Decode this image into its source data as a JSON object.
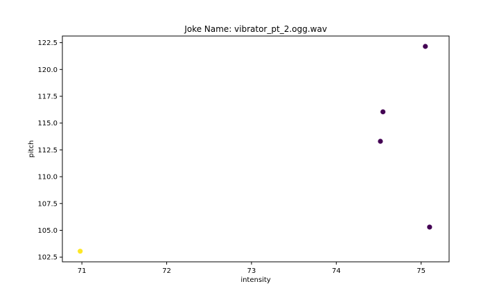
{
  "chart_data": {
    "type": "scatter",
    "title": "Joke Name: vibrator_pt_2.ogg.wav",
    "xlabel": "intensity",
    "ylabel": "pitch",
    "xlim": [
      70.77,
      75.33
    ],
    "ylim": [
      102.06,
      123.12
    ],
    "xticks": [
      71,
      72,
      73,
      74,
      75
    ],
    "xtick_labels": [
      "71",
      "72",
      "73",
      "74",
      "75"
    ],
    "yticks": [
      102.5,
      105.0,
      107.5,
      110.0,
      112.5,
      115.0,
      117.5,
      120.0,
      122.5
    ],
    "ytick_labels": [
      "102.5",
      "105.0",
      "107.5",
      "110.0",
      "112.5",
      "115.0",
      "117.5",
      "120.0",
      "122.5"
    ],
    "grid": false,
    "points": [
      {
        "x": 70.98,
        "y": 103.05,
        "color": "#fde725"
      },
      {
        "x": 74.52,
        "y": 113.3,
        "color": "#440154"
      },
      {
        "x": 74.55,
        "y": 116.05,
        "color": "#440154"
      },
      {
        "x": 75.05,
        "y": 122.15,
        "color": "#440154"
      },
      {
        "x": 75.1,
        "y": 105.3,
        "color": "#440154"
      }
    ]
  }
}
